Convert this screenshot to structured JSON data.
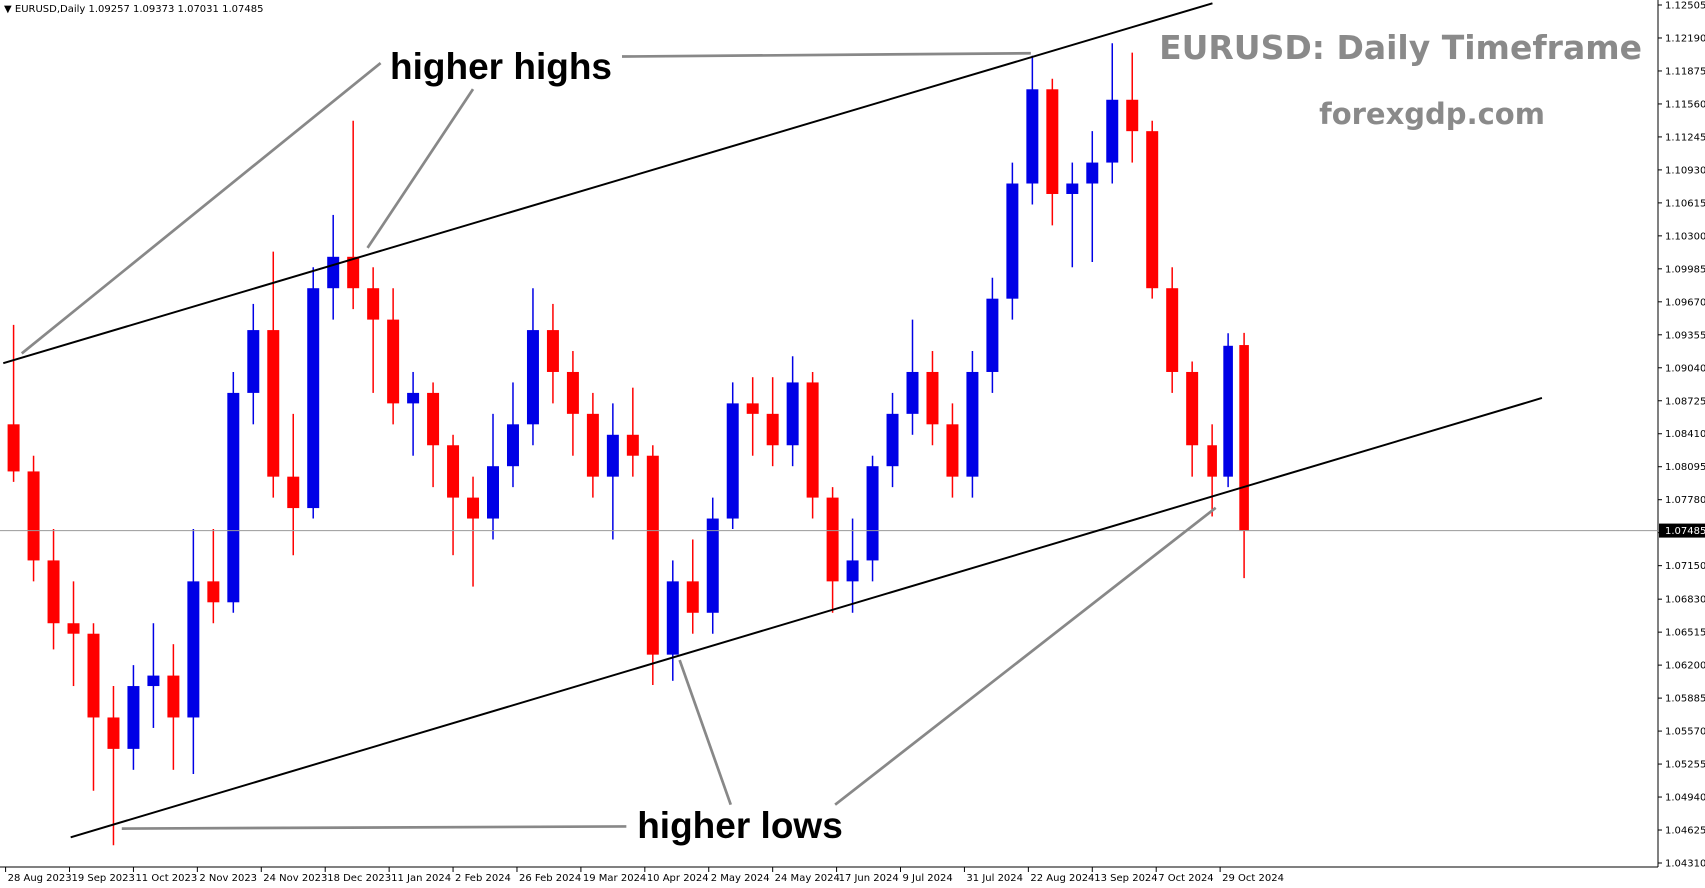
{
  "chart_data": {
    "type": "candlestick",
    "header": "▼ EURUSD,Daily  1.09257 1.09373 1.07031 1.07485",
    "title": "EURUSD: Daily Timeframe",
    "subtitle": "forexgdp.com",
    "annotations": [
      "higher highs",
      "higher lows"
    ],
    "up_color": "#0000e6",
    "down_color": "#ff0000",
    "x": [
      2,
      7,
      12,
      17,
      22,
      27,
      32,
      37,
      42,
      47,
      52,
      57,
      62,
      67,
      72,
      77,
      82,
      87,
      92,
      97,
      102,
      107,
      112,
      117,
      122,
      127,
      132,
      137,
      142,
      147,
      152,
      157,
      162,
      167,
      172,
      177,
      182,
      187,
      192,
      197,
      202,
      207,
      212,
      217,
      222,
      227,
      232,
      237,
      242,
      247,
      252,
      257,
      262,
      267,
      272,
      277,
      282,
      287,
      292,
      297,
      302,
      306,
      310
    ],
    "open": [
      1.085,
      1.0805,
      1.072,
      1.066,
      1.065,
      1.057,
      1.054,
      1.06,
      1.061,
      1.057,
      1.07,
      1.068,
      1.088,
      1.094,
      1.08,
      1.077,
      1.098,
      1.101,
      1.098,
      1.095,
      1.087,
      1.088,
      1.083,
      1.078,
      1.076,
      1.081,
      1.085,
      1.094,
      1.09,
      1.086,
      1.08,
      1.084,
      1.082,
      1.063,
      1.07,
      1.067,
      1.076,
      1.087,
      1.086,
      1.083,
      1.089,
      1.078,
      1.07,
      1.072,
      1.081,
      1.086,
      1.09,
      1.085,
      1.08,
      1.09,
      1.097,
      1.108,
      1.117,
      1.107,
      1.108,
      1.11,
      1.116,
      1.113,
      1.098,
      1.09,
      1.083,
      1.08,
      1.09257
    ],
    "high": [
      1.0945,
      1.082,
      1.075,
      1.07,
      1.066,
      1.06,
      1.062,
      1.066,
      1.064,
      1.075,
      1.075,
      1.09,
      1.0965,
      1.1015,
      1.086,
      1.1,
      1.105,
      1.114,
      1.1,
      1.098,
      1.09,
      1.089,
      1.084,
      1.08,
      1.086,
      1.089,
      1.098,
      1.0965,
      1.092,
      1.088,
      1.087,
      1.0885,
      1.083,
      1.072,
      1.074,
      1.078,
      1.089,
      1.0895,
      1.0895,
      1.0915,
      1.09,
      1.079,
      1.076,
      1.082,
      1.088,
      1.095,
      1.092,
      1.087,
      1.092,
      1.099,
      1.11,
      1.1202,
      1.118,
      1.11,
      1.113,
      1.1214,
      1.1205,
      1.114,
      1.1,
      1.091,
      1.085,
      1.0937,
      1.09373
    ],
    "low": [
      1.0795,
      1.07,
      1.0635,
      1.06,
      1.05,
      1.0448,
      1.052,
      1.056,
      1.052,
      1.0516,
      1.066,
      1.067,
      1.085,
      1.078,
      1.0725,
      1.076,
      1.095,
      1.096,
      1.088,
      1.085,
      1.082,
      1.079,
      1.0725,
      1.0695,
      1.074,
      1.079,
      1.083,
      1.087,
      1.082,
      1.078,
      1.074,
      1.08,
      1.0601,
      1.0605,
      1.065,
      1.065,
      1.075,
      1.082,
      1.081,
      1.081,
      1.076,
      1.067,
      1.067,
      1.07,
      1.079,
      1.084,
      1.083,
      1.078,
      1.078,
      1.088,
      1.095,
      1.106,
      1.104,
      1.1,
      1.1005,
      1.108,
      1.11,
      1.097,
      1.088,
      1.08,
      1.0762,
      1.079,
      1.07031
    ],
    "close": [
      1.0805,
      1.072,
      1.066,
      1.065,
      1.057,
      1.054,
      1.06,
      1.061,
      1.057,
      1.07,
      1.068,
      1.088,
      1.094,
      1.08,
      1.077,
      1.098,
      1.101,
      1.098,
      1.095,
      1.087,
      1.088,
      1.083,
      1.078,
      1.076,
      1.081,
      1.085,
      1.094,
      1.09,
      1.086,
      1.08,
      1.084,
      1.082,
      1.063,
      1.07,
      1.067,
      1.076,
      1.087,
      1.086,
      1.083,
      1.089,
      1.078,
      1.07,
      1.072,
      1.081,
      1.086,
      1.09,
      1.085,
      1.08,
      1.09,
      1.097,
      1.108,
      1.117,
      1.107,
      1.108,
      1.11,
      1.116,
      1.113,
      1.098,
      1.09,
      1.083,
      1.08,
      1.0925,
      1.07485
    ],
    "current_price": 1.07485,
    "xlim": [
      -1.4,
      413.6
    ],
    "xticks": [
      {
        "value": 0,
        "label": "28 Aug 2023"
      },
      {
        "value": 16,
        "label": "19 Sep 2023"
      },
      {
        "value": 32,
        "label": "11 Oct 2023"
      },
      {
        "value": 48,
        "label": "2 Nov 2023"
      },
      {
        "value": 64,
        "label": "24 Nov 2023"
      },
      {
        "value": 80,
        "label": "18 Dec 2023"
      },
      {
        "value": 96,
        "label": "11 Jan 2024"
      },
      {
        "value": 112,
        "label": "2 Feb 2024"
      },
      {
        "value": 128,
        "label": "26 Feb 2024"
      },
      {
        "value": 144,
        "label": "19 Mar 2024"
      },
      {
        "value": 160,
        "label": "10 Apr 2024"
      },
      {
        "value": 176,
        "label": "2 May 2024"
      },
      {
        "value": 192,
        "label": "24 May 2024"
      },
      {
        "value": 208,
        "label": "17 Jun 2024"
      },
      {
        "value": 224,
        "label": "9 Jul 2024"
      },
      {
        "value": 240,
        "label": "31 Jul 2024"
      },
      {
        "value": 256,
        "label": "22 Aug 2024"
      },
      {
        "value": 272,
        "label": "13 Sep 2024"
      },
      {
        "value": 288,
        "label": "7 Oct 2024"
      },
      {
        "value": 304,
        "label": "29 Oct 2024"
      }
    ],
    "ylim": [
      1.0431,
      1.12505
    ],
    "yticks": [
      1.12505,
      {
        "value": 1.1219,
        "label": "1.12190"
      },
      1.11875,
      {
        "value": 1.1156,
        "label": "1.11560"
      },
      1.11245,
      {
        "value": 1.1093,
        "label": "1.10930"
      },
      1.10615,
      {
        "value": 1.103,
        "label": "1.10300"
      },
      1.09985,
      {
        "value": 1.0967,
        "label": "1.09670"
      },
      1.09355,
      {
        "value": 1.0904,
        "label": "1.09040"
      },
      1.08725,
      {
        "value": 1.0841,
        "label": "1.08410"
      },
      1.08095,
      {
        "value": 1.0778,
        "label": "1.07780"
      },
      1.07465,
      {
        "value": 1.0715,
        "label": "1.07150"
      },
      {
        "value": 1.0683,
        "label": "1.06830"
      },
      1.06515,
      {
        "value": 1.062,
        "label": "1.06200"
      },
      1.05885,
      {
        "value": 1.0557,
        "label": "1.05570"
      },
      1.05255,
      {
        "value": 1.0494,
        "label": "1.04940"
      },
      1.04625,
      {
        "value": 1.0431,
        "label": "1.04310"
      }
    ]
  }
}
